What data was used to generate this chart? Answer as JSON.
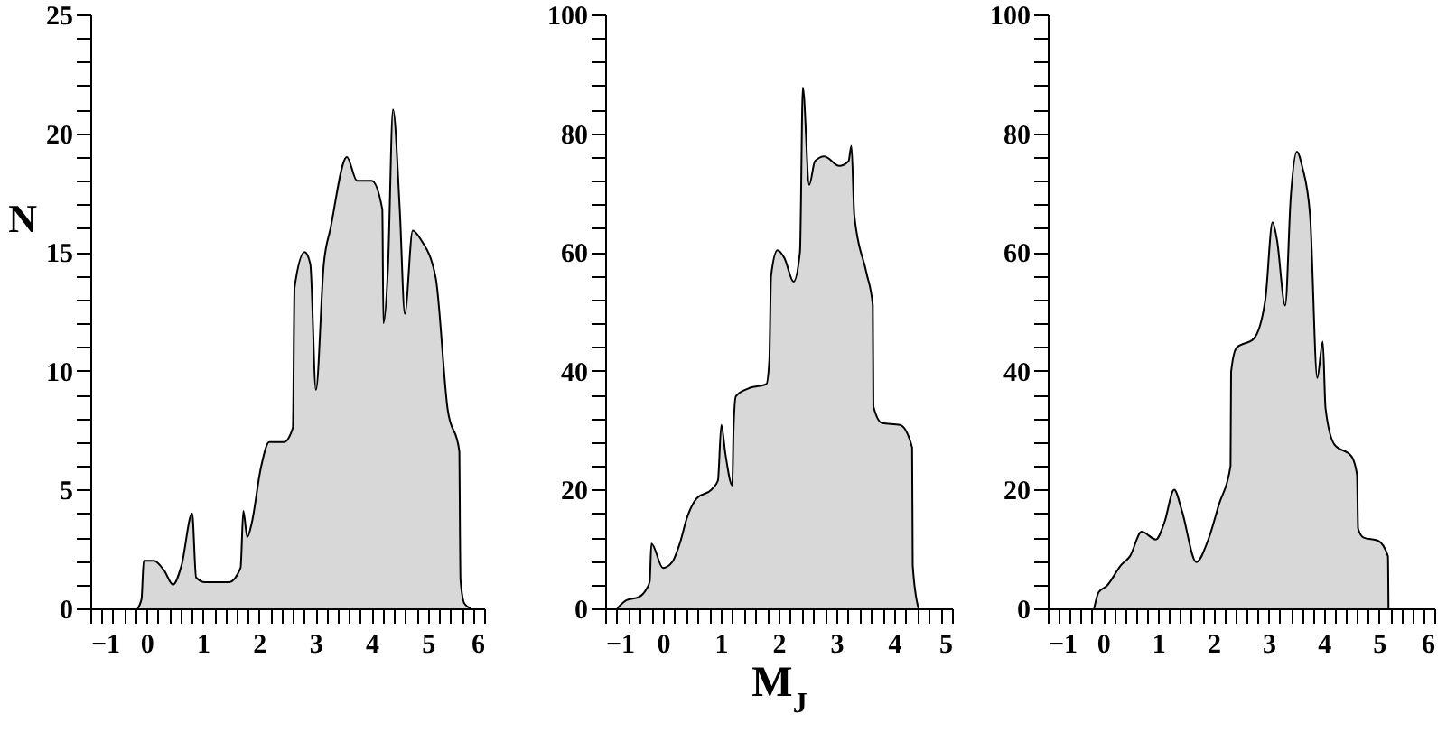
{
  "chart_data": [
    {
      "type": "area",
      "ylabel": "N",
      "color": "#c8c8c8",
      "x": [
        -0.16,
        -0.09,
        -0.05,
        0.13,
        0.31,
        0.47,
        0.62,
        0.81,
        0.88,
        1.04,
        1.46,
        1.67,
        1.72,
        1.79,
        1.87,
        2.03,
        2.18,
        2.44,
        2.6,
        2.63,
        2.81,
        2.91,
        3.01,
        3.15,
        3.27,
        3.56,
        3.74,
        4.0,
        4.19,
        4.21,
        4.29,
        4.38,
        4.5,
        4.59,
        4.73,
        4.88,
        5.14,
        5.35,
        5.56,
        5.57,
        5.58,
        5.65,
        5.76
      ],
      "values": [
        0,
        0.4,
        2,
        2,
        1.6,
        1,
        1.8,
        4,
        1.3,
        1.1,
        1.1,
        1.7,
        4.1,
        3,
        3.6,
        5.9,
        7,
        7,
        7.6,
        13.5,
        15,
        14.5,
        9.2,
        14.5,
        16,
        19,
        18,
        18,
        16.8,
        12,
        14.3,
        21,
        16.8,
        12.4,
        15.9,
        15.5,
        13.9,
        8.4,
        6.6,
        3.3,
        1.2,
        0.2,
        0
      ],
      "xlim": [
        -1,
        6
      ],
      "ylim": [
        0,
        25
      ],
      "xticks": [
        {
          "value": -1,
          "label": "−1"
        },
        {
          "value": -0.8,
          "label": null
        },
        {
          "value": -0.6,
          "label": null
        },
        {
          "value": -0.4,
          "label": null
        },
        {
          "value": -0.2,
          "label": null
        },
        0,
        {
          "value": 0.2,
          "label": null
        },
        {
          "value": 0.4,
          "label": null
        },
        {
          "value": 0.6,
          "label": null
        },
        {
          "value": 0.8,
          "label": null
        },
        1,
        {
          "value": 1.2,
          "label": null
        },
        {
          "value": 1.4,
          "label": null
        },
        {
          "value": 1.6,
          "label": null
        },
        {
          "value": 1.8,
          "label": null
        },
        2,
        {
          "value": 2.2,
          "label": null
        },
        {
          "value": 2.4,
          "label": null
        },
        {
          "value": 2.6,
          "label": null
        },
        {
          "value": 2.8,
          "label": null
        },
        3,
        {
          "value": 3.2,
          "label": null
        },
        {
          "value": 3.4,
          "label": null
        },
        {
          "value": 3.6,
          "label": null
        },
        {
          "value": 3.8,
          "label": null
        },
        4,
        {
          "value": 4.2,
          "label": null
        },
        {
          "value": 4.4,
          "label": null
        },
        {
          "value": 4.6,
          "label": null
        },
        {
          "value": 4.8,
          "label": null
        },
        5,
        {
          "value": 5.2,
          "label": null
        },
        {
          "value": 5.4,
          "label": null
        },
        {
          "value": 5.6,
          "label": null
        },
        {
          "value": 5.8,
          "label": null
        },
        6
      ],
      "yticks": [
        0,
        {
          "value": 1,
          "label": null
        },
        {
          "value": 2,
          "label": null
        },
        {
          "value": 3,
          "label": null
        },
        {
          "value": 4,
          "label": null
        },
        5,
        {
          "value": 6,
          "label": null
        },
        {
          "value": 7,
          "label": null
        },
        {
          "value": 8,
          "label": null
        },
        {
          "value": 9,
          "label": null
        },
        10,
        {
          "value": 11,
          "label": null
        },
        {
          "value": 12,
          "label": null
        },
        {
          "value": 13,
          "label": null
        },
        {
          "value": 14,
          "label": null
        },
        15,
        {
          "value": 16,
          "label": null
        },
        {
          "value": 17,
          "label": null
        },
        {
          "value": 18,
          "label": null
        },
        {
          "value": 19,
          "label": null
        },
        20,
        {
          "value": 21,
          "label": null
        },
        {
          "value": 22,
          "label": null
        },
        {
          "value": 23,
          "label": null
        },
        {
          "value": 24,
          "label": null
        },
        25
      ]
    },
    {
      "type": "area",
      "xlabel": "M$_{J}$",
      "color": "#c8c8c8",
      "x": [
        -0.79,
        -0.63,
        -0.42,
        -0.29,
        -0.23,
        -0.2,
        0,
        0.16,
        0.29,
        0.42,
        0.58,
        0.84,
        0.95,
        1.01,
        1.08,
        1.2,
        1.22,
        1.26,
        1.47,
        1.79,
        1.84,
        1.87,
        1.98,
        2.1,
        2.26,
        2.37,
        2.42,
        2.53,
        2.63,
        2.79,
        3.05,
        3.21,
        3.26,
        3.31,
        3.52,
        3.63,
        3.64,
        3.79,
        4.1,
        4.31,
        4.32,
        4.42
      ],
      "values": [
        0,
        1.4,
        1.9,
        3.2,
        4.5,
        10.9,
        6.8,
        7.8,
        10.9,
        15.4,
        18.5,
        20,
        21.5,
        30.9,
        26,
        20.7,
        30,
        35.7,
        37,
        37.8,
        41.8,
        56,
        60.3,
        59,
        55,
        60,
        87.7,
        71.3,
        75.3,
        76.1,
        74.5,
        75.3,
        77.9,
        66.2,
        56.5,
        51,
        34,
        31.2,
        30.9,
        27.1,
        7.3,
        0
      ],
      "xlim": [
        -1,
        5
      ],
      "ylim": [
        0,
        100
      ],
      "xticks": [
        {
          "value": -1,
          "label": "−1"
        },
        {
          "value": -0.8,
          "label": null
        },
        {
          "value": -0.6,
          "label": null
        },
        {
          "value": -0.4,
          "label": null
        },
        {
          "value": -0.2,
          "label": null
        },
        0,
        {
          "value": 0.2,
          "label": null
        },
        {
          "value": 0.4,
          "label": null
        },
        {
          "value": 0.6,
          "label": null
        },
        {
          "value": 0.8,
          "label": null
        },
        1,
        {
          "value": 1.2,
          "label": null
        },
        {
          "value": 1.4,
          "label": null
        },
        {
          "value": 1.6,
          "label": null
        },
        {
          "value": 1.8,
          "label": null
        },
        2,
        {
          "value": 2.2,
          "label": null
        },
        {
          "value": 2.4,
          "label": null
        },
        {
          "value": 2.6,
          "label": null
        },
        {
          "value": 2.8,
          "label": null
        },
        3,
        {
          "value": 3.2,
          "label": null
        },
        {
          "value": 3.4,
          "label": null
        },
        {
          "value": 3.6,
          "label": null
        },
        {
          "value": 3.8,
          "label": null
        },
        4,
        {
          "value": 4.2,
          "label": null
        },
        {
          "value": 4.4,
          "label": null
        },
        {
          "value": 4.6,
          "label": null
        },
        {
          "value": 4.8,
          "label": null
        },
        5
      ],
      "yticks": [
        0,
        {
          "value": 4,
          "label": null
        },
        {
          "value": 8,
          "label": null
        },
        {
          "value": 12,
          "label": null
        },
        {
          "value": 16,
          "label": null
        },
        20,
        {
          "value": 24,
          "label": null
        },
        {
          "value": 28,
          "label": null
        },
        {
          "value": 32,
          "label": null
        },
        {
          "value": 36,
          "label": null
        },
        40,
        {
          "value": 44,
          "label": null
        },
        {
          "value": 48,
          "label": null
        },
        {
          "value": 52,
          "label": null
        },
        {
          "value": 56,
          "label": null
        },
        60,
        {
          "value": 64,
          "label": null
        },
        {
          "value": 68,
          "label": null
        },
        {
          "value": 72,
          "label": null
        },
        {
          "value": 76,
          "label": null
        },
        80,
        {
          "value": 84,
          "label": null
        },
        {
          "value": 88,
          "label": null
        },
        {
          "value": 92,
          "label": null
        },
        {
          "value": 96,
          "label": null
        },
        100
      ]
    },
    {
      "type": "area",
      "color": "#c8c8c8",
      "x": [
        -0.16,
        -0.08,
        0.07,
        0.33,
        0.49,
        0.7,
        0.96,
        1.11,
        1.29,
        1.43,
        1.69,
        1.9,
        2.1,
        2.31,
        2.32,
        2.42,
        2.73,
        2.94,
        3.07,
        3.15,
        3.3,
        3.4,
        3.51,
        3.61,
        3.75,
        3.88,
        3.98,
        4.03,
        4.19,
        4.5,
        4.6,
        4.62,
        4.72,
        4.98,
        5.16,
        5.17
      ],
      "values": [
        0,
        2.7,
        3.8,
        7.3,
        8.8,
        12.9,
        11.6,
        14.4,
        20,
        16.4,
        7.8,
        11.4,
        17.5,
        24,
        39.8,
        43.9,
        45.4,
        52,
        65,
        62.1,
        51,
        69.2,
        76.9,
        74.3,
        66.2,
        38.8,
        44.9,
        33.7,
        27.6,
        25.6,
        22.5,
        13.4,
        11.9,
        11.4,
        8.8,
        0
      ],
      "xlim": [
        -1,
        6
      ],
      "ylim": [
        0,
        100
      ],
      "xticks": [
        {
          "value": -1,
          "label": "−1"
        },
        {
          "value": -0.8,
          "label": null
        },
        {
          "value": -0.6,
          "label": null
        },
        {
          "value": -0.4,
          "label": null
        },
        {
          "value": -0.2,
          "label": null
        },
        0,
        {
          "value": 0.2,
          "label": null
        },
        {
          "value": 0.4,
          "label": null
        },
        {
          "value": 0.6,
          "label": null
        },
        {
          "value": 0.8,
          "label": null
        },
        1,
        {
          "value": 1.2,
          "label": null
        },
        {
          "value": 1.4,
          "label": null
        },
        {
          "value": 1.6,
          "label": null
        },
        {
          "value": 1.8,
          "label": null
        },
        2,
        {
          "value": 2.2,
          "label": null
        },
        {
          "value": 2.4,
          "label": null
        },
        {
          "value": 2.6,
          "label": null
        },
        {
          "value": 2.8,
          "label": null
        },
        3,
        {
          "value": 3.2,
          "label": null
        },
        {
          "value": 3.4,
          "label": null
        },
        {
          "value": 3.6,
          "label": null
        },
        {
          "value": 3.8,
          "label": null
        },
        4,
        {
          "value": 4.2,
          "label": null
        },
        {
          "value": 4.4,
          "label": null
        },
        {
          "value": 4.6,
          "label": null
        },
        {
          "value": 4.8,
          "label": null
        },
        5,
        {
          "value": 5.2,
          "label": null
        },
        {
          "value": 5.4,
          "label": null
        },
        {
          "value": 5.6,
          "label": null
        },
        {
          "value": 5.8,
          "label": null
        },
        6
      ],
      "yticks": [
        0,
        {
          "value": 4,
          "label": null
        },
        {
          "value": 8,
          "label": null
        },
        {
          "value": 12,
          "label": null
        },
        {
          "value": 16,
          "label": null
        },
        20,
        {
          "value": 24,
          "label": null
        },
        {
          "value": 28,
          "label": null
        },
        {
          "value": 32,
          "label": null
        },
        {
          "value": 36,
          "label": null
        },
        40,
        {
          "value": 44,
          "label": null
        },
        {
          "value": 48,
          "label": null
        },
        {
          "value": 52,
          "label": null
        },
        {
          "value": 56,
          "label": null
        },
        60,
        {
          "value": 64,
          "label": null
        },
        {
          "value": 68,
          "label": null
        },
        {
          "value": 72,
          "label": null
        },
        {
          "value": 76,
          "label": null
        },
        80,
        {
          "value": 84,
          "label": null
        },
        {
          "value": 88,
          "label": null
        },
        {
          "value": 92,
          "label": null
        },
        {
          "value": 96,
          "label": null
        },
        100
      ]
    }
  ]
}
